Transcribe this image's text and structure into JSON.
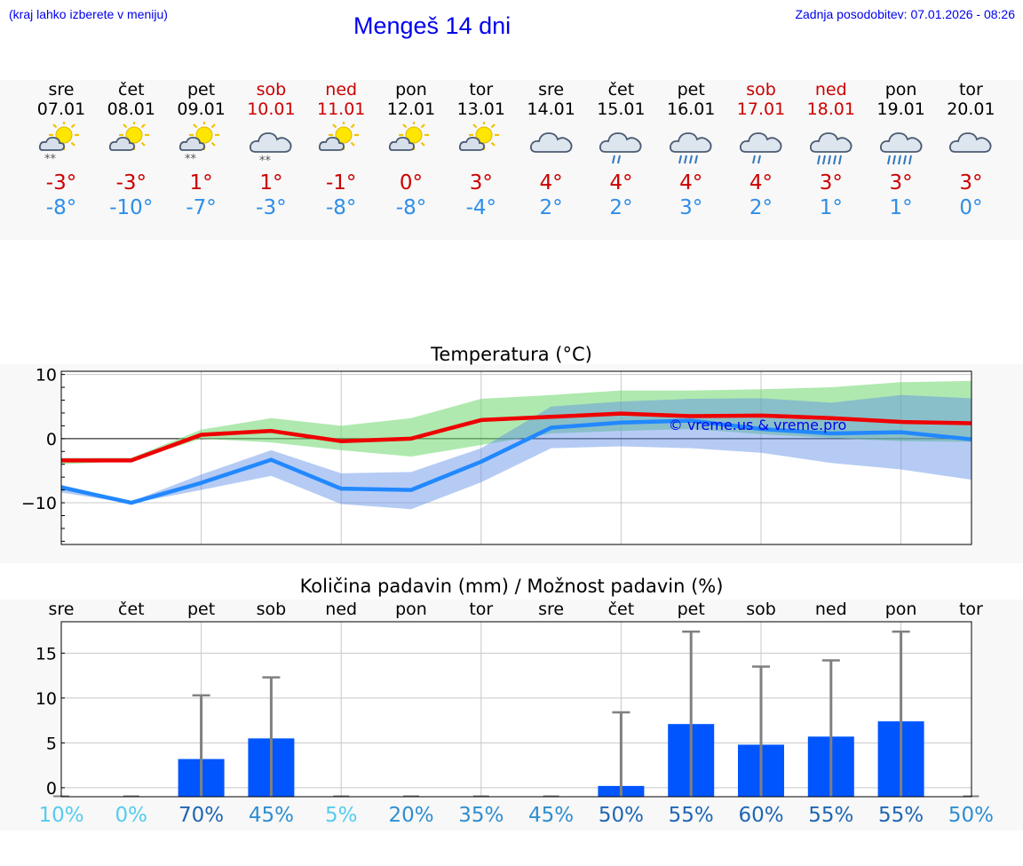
{
  "header": {
    "hint": "(kraj lahko izberete v meniju)",
    "title": "Mengeš 14 dni",
    "updated": "Zadnja posodobitev: 07.01.2026 - 08:26"
  },
  "colors": {
    "link": "#0000ee",
    "weekend": "#cc0000",
    "tmax": "#cc0000",
    "tmin": "#2e8ee8",
    "bar": "#0055ff",
    "errbar": "#808080"
  },
  "days": [
    {
      "name": "sre",
      "date": "07.01",
      "weekend": false,
      "icon": "sun-cloud-snow-icon",
      "tmax": "-3°",
      "tmin": "-8°"
    },
    {
      "name": "čet",
      "date": "08.01",
      "weekend": false,
      "icon": "sun-cloud-icon",
      "tmax": "-3°",
      "tmin": "-10°"
    },
    {
      "name": "pet",
      "date": "09.01",
      "weekend": false,
      "icon": "sun-cloud-snow-icon",
      "tmax": "1°",
      "tmin": "-7°"
    },
    {
      "name": "sob",
      "date": "10.01",
      "weekend": true,
      "icon": "cloud-snow-icon",
      "tmax": "1°",
      "tmin": "-3°"
    },
    {
      "name": "ned",
      "date": "11.01",
      "weekend": true,
      "icon": "sun-cloud-icon",
      "tmax": "-1°",
      "tmin": "-8°"
    },
    {
      "name": "pon",
      "date": "12.01",
      "weekend": false,
      "icon": "sun-cloud-icon",
      "tmax": "0°",
      "tmin": "-8°"
    },
    {
      "name": "tor",
      "date": "13.01",
      "weekend": false,
      "icon": "sun-cloud-icon",
      "tmax": "3°",
      "tmin": "-4°"
    },
    {
      "name": "sre",
      "date": "14.01",
      "weekend": false,
      "icon": "cloud-icon",
      "tmax": "4°",
      "tmin": "2°"
    },
    {
      "name": "čet",
      "date": "15.01",
      "weekend": false,
      "icon": "cloud-rain-light-icon",
      "tmax": "4°",
      "tmin": "2°"
    },
    {
      "name": "pet",
      "date": "16.01",
      "weekend": false,
      "icon": "cloud-rain-icon",
      "tmax": "4°",
      "tmin": "3°"
    },
    {
      "name": "sob",
      "date": "17.01",
      "weekend": true,
      "icon": "cloud-rain-light-icon",
      "tmax": "4°",
      "tmin": "2°"
    },
    {
      "name": "ned",
      "date": "18.01",
      "weekend": true,
      "icon": "cloud-rain-heavy-icon",
      "tmax": "3°",
      "tmin": "1°"
    },
    {
      "name": "pon",
      "date": "19.01",
      "weekend": false,
      "icon": "cloud-rain-heavy-icon",
      "tmax": "3°",
      "tmin": "1°"
    },
    {
      "name": "tor",
      "date": "20.01",
      "weekend": false,
      "icon": "cloud-icon",
      "tmax": "3°",
      "tmin": "0°"
    }
  ],
  "chart_data": [
    {
      "type": "line",
      "title": "Temperatura (°C)",
      "ylim": [
        -16.5,
        10.5
      ],
      "yticks": [
        10,
        0,
        -10
      ],
      "ytick_labels": [
        "10",
        "0",
        "−10"
      ],
      "x": [
        0,
        1,
        2,
        3,
        4,
        5,
        6,
        7,
        8,
        9,
        10,
        11,
        12,
        13
      ],
      "watermark": "© vreme.us & vreme.pro",
      "series": [
        {
          "name": "max",
          "color": "#ee0000",
          "values": [
            -3.4,
            -3.4,
            0.6,
            1.2,
            -0.4,
            0,
            2.9,
            3.4,
            3.9,
            3.5,
            3.6,
            3.2,
            2.6,
            2.4
          ]
        },
        {
          "name": "min",
          "color": "#2288ff",
          "values": [
            -7.6,
            -10,
            -6.9,
            -3.3,
            -7.8,
            -8,
            -3.6,
            1.7,
            2.5,
            2.8,
            1.5,
            0.8,
            1,
            -0.1
          ]
        }
      ],
      "max_range": {
        "low": [
          -4,
          -3.5,
          0,
          -0.6,
          -1.8,
          -2.8,
          -1,
          0.8,
          1.2,
          1.5,
          0.7,
          0.1,
          -0.4,
          -0.5
        ],
        "high": [
          -3,
          -3,
          1.4,
          3.2,
          2,
          3.2,
          6.2,
          6.8,
          7.5,
          7.5,
          7.7,
          8,
          8.8,
          9
        ]
      },
      "min_range": {
        "low": [
          -8.4,
          -10.1,
          -8,
          -5.8,
          -10.2,
          -11,
          -6.8,
          -1.5,
          -1.2,
          -1.5,
          -2.2,
          -3.8,
          -4.8,
          -6.4
        ],
        "high": [
          -7.2,
          -9.8,
          -5.6,
          -1.8,
          -5.4,
          -5.2,
          -1.5,
          5,
          5.8,
          6.2,
          6.3,
          5.6,
          6.8,
          6.3
        ]
      }
    },
    {
      "type": "bar",
      "title": "Količina padavin (mm) / Možnost padavin (%)",
      "ylim": [
        -1,
        18.5
      ],
      "yticks": [
        15,
        10,
        5,
        0
      ],
      "categories": [
        "sre",
        "čet",
        "pet",
        "sob",
        "ned",
        "pon",
        "tor",
        "sre",
        "čet",
        "pet",
        "sob",
        "ned",
        "pon",
        "tor"
      ],
      "values": [
        0,
        0,
        3.2,
        5.5,
        0,
        0,
        0,
        0,
        0.2,
        7.1,
        4.8,
        5.7,
        7.4,
        0
      ],
      "err_high": [
        0,
        0,
        10.3,
        12.3,
        0,
        0,
        0,
        0,
        8.4,
        17.4,
        13.5,
        14.2,
        17.4,
        0
      ],
      "probability": [
        "10%",
        "0%",
        "70%",
        "45%",
        "5%",
        "20%",
        "35%",
        "45%",
        "50%",
        "55%",
        "60%",
        "55%",
        "55%",
        "50%"
      ],
      "probability_colors": [
        "#55ccee",
        "#55ccee",
        "#1f66b3",
        "#2f8ed0",
        "#55ccee",
        "#2f8ed0",
        "#2f8ed0",
        "#2f8ed0",
        "#1f66b3",
        "#1f66b3",
        "#1f66b3",
        "#1f66b3",
        "#1f66b3",
        "#2f8ed0"
      ]
    }
  ]
}
